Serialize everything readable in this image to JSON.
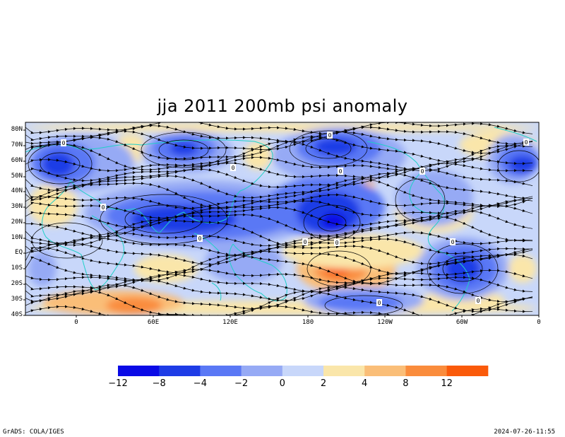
{
  "title": "jja 2011 200mb psi anomaly",
  "lat_labels": [
    "80N",
    "70N",
    "60N",
    "50N",
    "40N",
    "30N",
    "20N",
    "10N",
    "EQ",
    "10S",
    "20S",
    "30S",
    "40S"
  ],
  "lon_labels": [
    "0",
    "60E",
    "120E",
    "180",
    "120W",
    "60W",
    "0"
  ],
  "colorbar": {
    "labels": [
      "−12",
      "−8",
      "−4",
      "−2",
      "0",
      "2",
      "4",
      "8",
      "12"
    ],
    "colors": [
      "#0a0ae6",
      "#1e3ce6",
      "#5a78f5",
      "#96aaf5",
      "#c8d7fa",
      "#fae6aa",
      "#fabe78",
      "#fa8c3c",
      "#fa5a0a"
    ]
  },
  "contour_labels": [
    "0",
    "0",
    "0",
    "0",
    "0",
    "0",
    "0",
    "0",
    "0",
    "0",
    "0",
    "0",
    "0"
  ],
  "footer": {
    "left": "GrADS: COLA/IGES",
    "right": "2024-07-26-11:55"
  },
  "colors": {
    "coastline": "#20d0c8",
    "streamline": "#000000",
    "contour": "#000000"
  }
}
